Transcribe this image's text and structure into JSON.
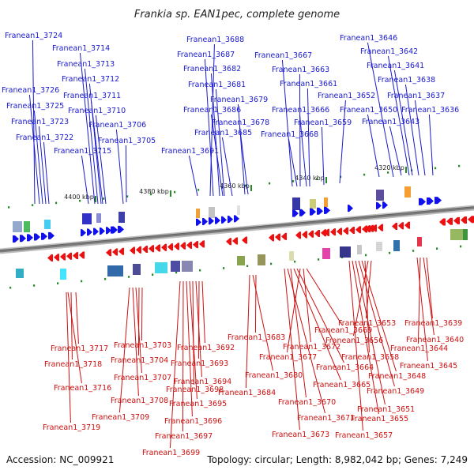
{
  "title": "Frankia sp. EAN1pec, complete genome",
  "footer": {
    "accession": "Accession: NC_009921",
    "topology": "Topology: circular; Length: 8,982,042 bp; Genes: 7,249"
  },
  "colors": {
    "top_genes": "#1a1acc",
    "bottom_genes": "#cc1111",
    "backbone": "#8a8a8a",
    "tick": "#2a8a2a",
    "top_arrow": "#1010ee",
    "bottom_arrow": "#ee1010"
  },
  "scale_labels": [
    "4400 kbp",
    "4380 kbp",
    "4360 kbp",
    "4340 kbp",
    "4320 kbp"
  ],
  "top_genes": [
    "Franean1_3724",
    "Franean1_3714",
    "Franean1_3713",
    "Franean1_3712",
    "Franean1_3726",
    "Franean1_3711",
    "Franean1_3725",
    "Franean1_3710",
    "Franean1_3723",
    "Franean1_3706",
    "Franean1_3722",
    "Franean1_3705",
    "Franean1_3715",
    "Franean1_3691",
    "Franean1_3688",
    "Franean1_3687",
    "Franean1_3682",
    "Franean1_3681",
    "Franean1_3679",
    "Franean1_3686",
    "Franean1_3678",
    "Franean1_3685",
    "Franean1_3667",
    "Franean1_3663",
    "Franean1_3661",
    "Franean1_3652",
    "Franean1_3666",
    "Franean1_3659",
    "Franean1_3668",
    "Franean1_3646",
    "Franean1_3642",
    "Franean1_3641",
    "Franean1_3638",
    "Franean1_3637",
    "Franean1_3650",
    "Franean1_3636",
    "Franean1_3643"
  ],
  "bottom_genes": [
    "Franean1_3717",
    "Franean1_3718",
    "Franean1_3716",
    "Franean1_3719",
    "Franean1_3703",
    "Franean1_3704",
    "Franean1_3707",
    "Franean1_3708",
    "Franean1_3709",
    "Franean1_3692",
    "Franean1_3693",
    "Franean1_3694",
    "Franean1_3698",
    "Franean1_3695",
    "Franean1_3696",
    "Franean1_3697",
    "Franean1_3699",
    "Franean1_3683",
    "Franean1_3680",
    "Franean1_3684",
    "Franean1_3669",
    "Franean1_3672",
    "Franean1_3677",
    "Franean1_3664",
    "Franean1_3665",
    "Franean1_3670",
    "Franean1_3671",
    "Franean1_3673",
    "Franean1_3653",
    "Franean1_3656",
    "Franean1_3658",
    "Franean1_3648",
    "Franean1_3649",
    "Franean1_3651",
    "Franean1_3655",
    "Franean1_3657",
    "Franean1_3639",
    "Franean1_3640",
    "Franean1_3644",
    "Franean1_3645"
  ]
}
